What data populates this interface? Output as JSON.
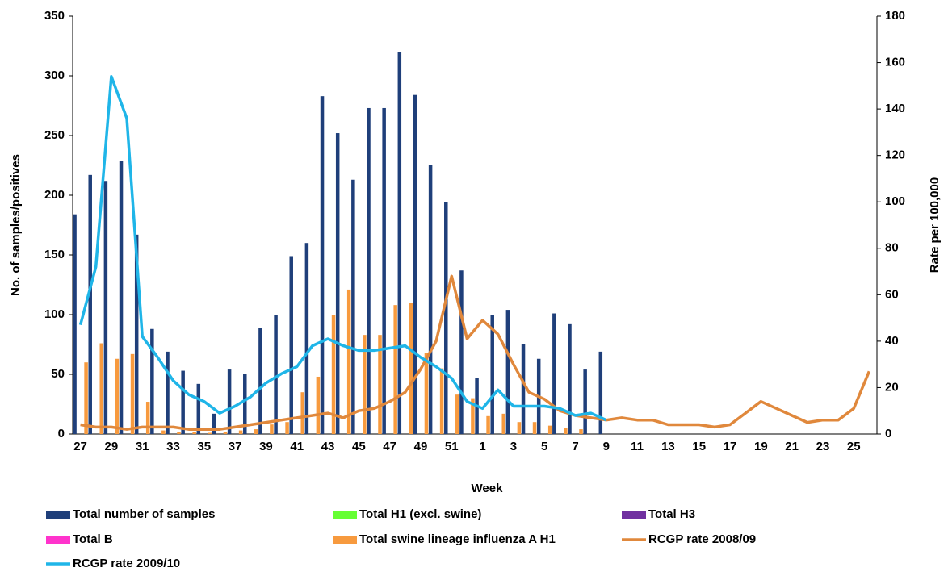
{
  "chart_data": {
    "type": "bar",
    "x_label": "Week",
    "y_label": "No. of samples/positives",
    "y2_label": "Rate per 100,000",
    "categories": [
      "27",
      null,
      "29",
      null,
      "31",
      null,
      "33",
      null,
      "35",
      null,
      "37",
      null,
      "39",
      null,
      "41",
      null,
      "43",
      null,
      "45",
      null,
      "47",
      null,
      "49",
      null,
      "51",
      null,
      "1",
      null,
      "3",
      null,
      "5",
      null,
      "7",
      null,
      "9",
      null,
      "11",
      null,
      "13",
      null,
      "15",
      null,
      "17",
      null,
      "19",
      null,
      "21",
      null,
      "23",
      null,
      "25",
      null
    ],
    "ylim": [
      0,
      350
    ],
    "yticks": [
      0,
      50,
      100,
      150,
      200,
      250,
      300,
      350
    ],
    "y2lim": [
      0,
      180
    ],
    "y2ticks": [
      0,
      20,
      40,
      60,
      80,
      100,
      120,
      140,
      160,
      180
    ],
    "series": [
      {
        "name": "Total number of samples",
        "color": "#1f3f7a",
        "values": [
          184,
          217,
          212,
          229,
          167,
          88,
          69,
          53,
          42,
          17,
          54,
          50,
          89,
          100,
          149,
          160,
          283,
          252,
          213,
          273,
          273,
          320,
          284,
          225,
          194,
          137,
          47,
          100,
          104,
          75,
          63,
          101,
          92,
          54,
          69,
          null,
          null,
          null,
          null,
          null,
          null,
          null,
          null,
          null,
          null,
          null,
          null,
          null,
          null,
          null,
          null,
          null
        ]
      },
      {
        "name": "Total H1 (excl. swine)",
        "color": "#66ff33",
        "values": [
          null,
          null,
          null,
          null,
          null,
          null,
          null,
          null,
          null,
          null,
          null,
          null,
          null,
          null,
          null,
          null,
          null,
          null,
          null,
          null,
          null,
          null,
          null,
          null,
          null,
          null,
          null,
          null,
          null,
          null,
          null,
          null,
          null,
          null,
          null,
          null,
          null,
          null,
          null,
          null,
          null,
          null,
          null,
          null,
          null,
          null,
          null,
          null,
          null,
          null,
          null,
          null
        ]
      },
      {
        "name": "Total H3",
        "color": "#7030a0",
        "values": [
          null,
          null,
          null,
          null,
          null,
          null,
          null,
          null,
          null,
          null,
          null,
          null,
          null,
          null,
          null,
          null,
          null,
          null,
          null,
          null,
          null,
          null,
          null,
          null,
          null,
          null,
          null,
          null,
          null,
          null,
          null,
          null,
          null,
          null,
          null,
          null,
          null,
          null,
          null,
          null,
          null,
          null,
          null,
          null,
          null,
          null,
          null,
          null,
          null,
          null,
          null,
          null
        ]
      },
      {
        "name": "Total B",
        "color": "#ff33cc",
        "values": [
          null,
          null,
          null,
          null,
          null,
          null,
          null,
          null,
          null,
          null,
          null,
          null,
          null,
          null,
          null,
          null,
          null,
          null,
          null,
          null,
          null,
          null,
          null,
          null,
          null,
          null,
          null,
          null,
          null,
          null,
          null,
          null,
          null,
          null,
          null,
          null,
          null,
          null,
          null,
          null,
          null,
          null,
          null,
          null,
          null,
          null,
          null,
          null,
          null,
          null,
          null,
          null
        ]
      },
      {
        "name": "Total swine lineage influenza A H1",
        "color": "#f79a3e",
        "values": [
          60,
          76,
          63,
          67,
          27,
          3,
          2,
          2,
          1,
          2,
          3,
          4,
          8,
          10,
          35,
          48,
          100,
          121,
          83,
          83,
          108,
          110,
          68,
          55,
          33,
          30,
          15,
          17,
          10,
          10,
          7,
          5,
          4,
          null,
          null,
          null,
          null,
          null,
          null,
          null,
          null,
          null,
          null,
          null,
          null,
          null,
          null,
          null,
          null,
          null,
          null,
          null
        ]
      },
      {
        "name": "RCGP rate 2008/09",
        "color": "#e0883c",
        "type": "line",
        "axis": "y2",
        "values": [
          4,
          3,
          3,
          2,
          3,
          3,
          3,
          2,
          2,
          2,
          3,
          4,
          5,
          6,
          7,
          8,
          9,
          7,
          10,
          11,
          14,
          18,
          28,
          40,
          68,
          41,
          49,
          43,
          30,
          18,
          15,
          10,
          8,
          7,
          6,
          7,
          6,
          6,
          4,
          4,
          4,
          3,
          4,
          9,
          14,
          11,
          8,
          5,
          6,
          6,
          11,
          27
        ]
      },
      {
        "name": "RCGP rate 2009/10",
        "color": "#1fb5e8",
        "type": "line",
        "axis": "y2",
        "values": [
          47,
          72,
          154,
          136,
          42,
          33,
          23,
          17,
          14,
          9,
          12,
          16,
          22,
          26,
          29,
          38,
          41,
          38,
          36,
          36,
          37,
          38,
          33,
          29,
          24,
          14,
          11,
          19,
          12,
          12,
          12,
          11,
          8,
          9,
          6,
          null,
          null,
          null,
          null,
          null,
          null,
          null,
          null,
          null,
          null,
          null,
          null,
          null,
          null,
          null,
          null,
          null
        ]
      }
    ]
  }
}
